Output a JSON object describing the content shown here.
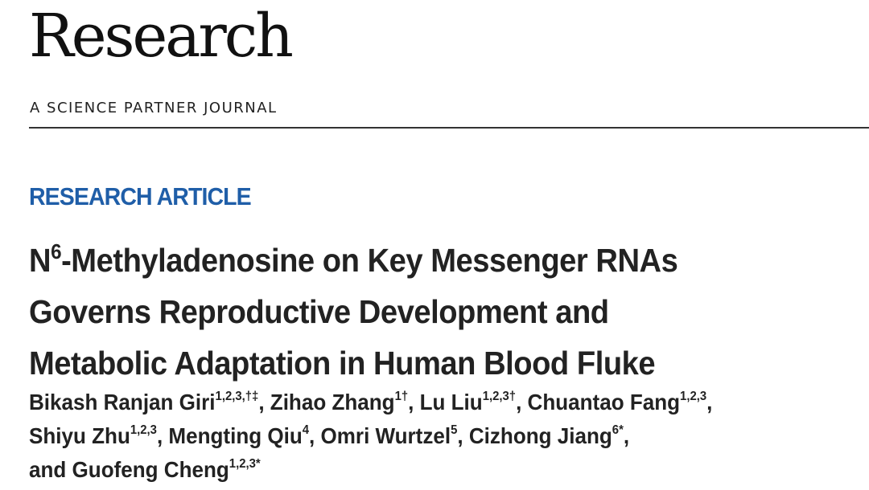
{
  "masthead": {
    "title": "Research",
    "subtitle": "A SCIENCE PARTNER JOURNAL"
  },
  "article": {
    "type": "RESEARCH ARTICLE",
    "title_prefix": "N",
    "title_superscript": "6",
    "title_line1_rest": "-Methyladenosine on Key Messenger RNAs",
    "title_line2": "Governs Reproductive Development and",
    "title_line3": "Metabolic Adaptation in Human Blood Fluke"
  },
  "authors": [
    {
      "name": "Bikash Ranjan Giri",
      "affil": "1,2,3,†‡",
      "sep": ", "
    },
    {
      "name": "Zihao Zhang",
      "affil": "1†",
      "sep": ", "
    },
    {
      "name": "Lu Liu",
      "affil": "1,2,3†",
      "sep": ", "
    },
    {
      "name": "Chuantao Fang",
      "affil": "1,2,3",
      "sep": ","
    },
    {
      "name": "Shiyu Zhu",
      "affil": "1,2,3",
      "sep": ", "
    },
    {
      "name": "Mengting Qiu",
      "affil": "4",
      "sep": ", "
    },
    {
      "name": "Omri Wurtzel",
      "affil": "5",
      "sep": ", "
    },
    {
      "name": "Cizhong Jiang",
      "affil": "6*",
      "sep": ","
    },
    {
      "name": "and Guofeng Cheng",
      "affil": "1,2,3*",
      "sep": ""
    }
  ],
  "colors": {
    "accent": "#1f5ea8",
    "text": "#222222",
    "rule": "#333333"
  }
}
